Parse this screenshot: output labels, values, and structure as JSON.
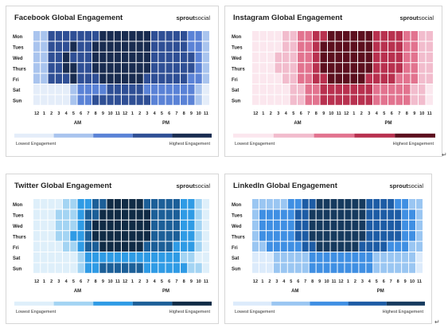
{
  "chart_data": [
    {
      "type": "heatmap",
      "title": "Facebook Global Engagement",
      "brand": "sproutsocial",
      "rows": [
        "Mon",
        "Tues",
        "Wed",
        "Thurs",
        "Fri",
        "Sat",
        "Sun"
      ],
      "columns": [
        "12",
        "1",
        "2",
        "3",
        "4",
        "5",
        "6",
        "7",
        "8",
        "9",
        "10",
        "11",
        "12",
        "1",
        "2",
        "3",
        "4",
        "5",
        "6",
        "7",
        "8",
        "9",
        "10",
        "11"
      ],
      "x_groups": [
        "AM",
        "PM"
      ],
      "legend": [
        "Lowest Engagement",
        "Highest Engagement"
      ],
      "colors": [
        "#e4edf9",
        "#a9c4ee",
        "#5a82d6",
        "#2f4f95",
        "#192c50"
      ],
      "values": [
        [
          1,
          1,
          3,
          3,
          3,
          3,
          3,
          3,
          3,
          4,
          4,
          4,
          4,
          4,
          4,
          4,
          3,
          3,
          3,
          3,
          3,
          2,
          2,
          1
        ],
        [
          1,
          1,
          3,
          3,
          3,
          4,
          3,
          3,
          4,
          4,
          4,
          4,
          4,
          4,
          4,
          4,
          3,
          3,
          3,
          3,
          3,
          2,
          2,
          1
        ],
        [
          1,
          1,
          3,
          3,
          4,
          3,
          3,
          3,
          4,
          4,
          4,
          4,
          4,
          4,
          4,
          4,
          3,
          3,
          3,
          3,
          3,
          3,
          2,
          1
        ],
        [
          1,
          1,
          3,
          3,
          4,
          4,
          3,
          3,
          4,
          4,
          4,
          4,
          4,
          4,
          4,
          4,
          3,
          3,
          3,
          3,
          3,
          3,
          2,
          1
        ],
        [
          1,
          1,
          3,
          3,
          3,
          4,
          3,
          3,
          3,
          4,
          4,
          4,
          4,
          4,
          4,
          3,
          3,
          3,
          3,
          3,
          3,
          2,
          2,
          1
        ],
        [
          0,
          0,
          0,
          0,
          0,
          1,
          2,
          2,
          2,
          2,
          3,
          3,
          3,
          3,
          3,
          2,
          2,
          2,
          2,
          2,
          2,
          2,
          1,
          0
        ],
        [
          0,
          0,
          0,
          0,
          0,
          1,
          2,
          2,
          3,
          3,
          3,
          3,
          3,
          3,
          3,
          3,
          2,
          2,
          2,
          2,
          2,
          2,
          1,
          0
        ]
      ]
    },
    {
      "type": "heatmap",
      "title": "Instagram Global Engagement",
      "brand": "sproutsocial",
      "rows": [
        "Mon",
        "Tues",
        "Wed",
        "Thurs",
        "Fri",
        "Sat",
        "Sun"
      ],
      "columns": [
        "12",
        "1",
        "2",
        "3",
        "4",
        "5",
        "6",
        "7",
        "8",
        "9",
        "10",
        "11",
        "12",
        "1",
        "2",
        "3",
        "4",
        "5",
        "6",
        "7",
        "8",
        "9",
        "10",
        "11"
      ],
      "x_groups": [
        "AM",
        "PM"
      ],
      "legend": [
        "Lowest Engagement",
        "Highest Engagement"
      ],
      "colors": [
        "#fbe7ee",
        "#f2bccd",
        "#e2738f",
        "#b8314f",
        "#5c0f1e"
      ],
      "values": [
        [
          0,
          0,
          0,
          0,
          1,
          1,
          2,
          2,
          3,
          3,
          4,
          4,
          4,
          4,
          4,
          4,
          3,
          3,
          3,
          3,
          2,
          2,
          1,
          1
        ],
        [
          0,
          0,
          0,
          0,
          1,
          1,
          2,
          2,
          3,
          4,
          4,
          4,
          4,
          4,
          4,
          4,
          3,
          3,
          3,
          3,
          2,
          2,
          1,
          1
        ],
        [
          0,
          0,
          0,
          1,
          1,
          1,
          2,
          2,
          3,
          4,
          4,
          4,
          4,
          4,
          4,
          4,
          3,
          3,
          3,
          3,
          2,
          2,
          1,
          1
        ],
        [
          0,
          0,
          0,
          1,
          1,
          1,
          2,
          2,
          3,
          4,
          4,
          4,
          4,
          4,
          4,
          4,
          3,
          3,
          3,
          3,
          2,
          2,
          1,
          1
        ],
        [
          0,
          0,
          0,
          0,
          1,
          1,
          2,
          2,
          3,
          3,
          4,
          4,
          4,
          4,
          4,
          3,
          3,
          3,
          3,
          2,
          2,
          2,
          1,
          1
        ],
        [
          0,
          0,
          0,
          0,
          0,
          1,
          1,
          2,
          2,
          3,
          3,
          3,
          3,
          3,
          3,
          3,
          2,
          2,
          2,
          2,
          2,
          1,
          1,
          0
        ],
        [
          0,
          0,
          0,
          0,
          0,
          1,
          1,
          2,
          2,
          3,
          3,
          3,
          3,
          3,
          3,
          3,
          2,
          2,
          2,
          2,
          2,
          1,
          1,
          0
        ]
      ]
    },
    {
      "type": "heatmap",
      "title": "Twitter Global Engagement",
      "brand": "sproutsocial",
      "rows": [
        "Mon",
        "Tues",
        "Wed",
        "Thurs",
        "Fri",
        "Sat",
        "Sun"
      ],
      "columns": [
        "12",
        "1",
        "2",
        "3",
        "4",
        "5",
        "6",
        "7",
        "8",
        "9",
        "10",
        "11",
        "12",
        "1",
        "2",
        "3",
        "4",
        "5",
        "6",
        "7",
        "8",
        "9",
        "10",
        "11"
      ],
      "x_groups": [
        "AM",
        "PM"
      ],
      "legend": [
        "Lowest Engagement",
        "Highest Engagement"
      ],
      "colors": [
        "#deeffa",
        "#a3d4f3",
        "#2f9be5",
        "#1c5f98",
        "#102b45"
      ],
      "values": [
        [
          0,
          0,
          0,
          0,
          1,
          1,
          2,
          2,
          3,
          3,
          4,
          4,
          4,
          4,
          4,
          3,
          3,
          3,
          3,
          3,
          2,
          2,
          1,
          0
        ],
        [
          0,
          0,
          0,
          1,
          1,
          1,
          2,
          3,
          3,
          4,
          4,
          4,
          4,
          4,
          4,
          4,
          3,
          3,
          3,
          3,
          2,
          2,
          1,
          0
        ],
        [
          0,
          0,
          0,
          1,
          1,
          1,
          2,
          3,
          4,
          4,
          4,
          4,
          4,
          4,
          4,
          4,
          3,
          3,
          3,
          3,
          2,
          2,
          1,
          0
        ],
        [
          0,
          0,
          0,
          1,
          1,
          2,
          2,
          3,
          4,
          4,
          4,
          4,
          4,
          4,
          4,
          4,
          3,
          3,
          3,
          3,
          2,
          2,
          1,
          0
        ],
        [
          0,
          0,
          0,
          0,
          1,
          1,
          2,
          3,
          3,
          4,
          4,
          4,
          4,
          4,
          4,
          3,
          3,
          3,
          3,
          2,
          2,
          2,
          1,
          0
        ],
        [
          0,
          0,
          0,
          0,
          0,
          0,
          1,
          2,
          2,
          2,
          2,
          2,
          2,
          2,
          2,
          2,
          2,
          2,
          2,
          2,
          1,
          1,
          0,
          0
        ],
        [
          0,
          0,
          0,
          0,
          0,
          0,
          1,
          2,
          2,
          3,
          3,
          3,
          3,
          3,
          3,
          2,
          2,
          2,
          2,
          2,
          2,
          1,
          1,
          0
        ]
      ]
    },
    {
      "type": "heatmap",
      "title": "LinkedIn Global Engagement",
      "brand": "sproutsocial",
      "rows": [
        "Mon",
        "Tues",
        "Wed",
        "Thurs",
        "Fri",
        "Sat",
        "Sun"
      ],
      "columns": [
        "12",
        "1",
        "2",
        "3",
        "4",
        "5",
        "6",
        "7",
        "8",
        "9",
        "10",
        "11",
        "12",
        "1",
        "2",
        "3",
        "4",
        "5",
        "6",
        "7",
        "8",
        "9",
        "10",
        "11"
      ],
      "x_groups": [
        "AM",
        "PM"
      ],
      "legend": [
        "Lowest Engagement",
        "Highest Engagement"
      ],
      "colors": [
        "#dcebfb",
        "#9ac6f2",
        "#3f8fe3",
        "#1d5ca5",
        "#163a5e"
      ],
      "values": [
        [
          1,
          1,
          1,
          1,
          1,
          2,
          2,
          3,
          3,
          4,
          4,
          4,
          4,
          4,
          4,
          4,
          3,
          3,
          3,
          3,
          2,
          2,
          1,
          1
        ],
        [
          1,
          2,
          2,
          2,
          2,
          2,
          3,
          3,
          4,
          4,
          4,
          4,
          4,
          4,
          4,
          4,
          3,
          3,
          3,
          3,
          3,
          2,
          2,
          1
        ],
        [
          1,
          2,
          2,
          2,
          2,
          2,
          3,
          3,
          4,
          4,
          4,
          4,
          4,
          4,
          4,
          4,
          3,
          3,
          3,
          3,
          3,
          2,
          2,
          1
        ],
        [
          1,
          2,
          2,
          2,
          2,
          2,
          3,
          3,
          4,
          4,
          4,
          4,
          4,
          4,
          4,
          4,
          3,
          3,
          3,
          3,
          3,
          2,
          2,
          1
        ],
        [
          1,
          1,
          2,
          2,
          2,
          2,
          2,
          3,
          3,
          4,
          4,
          4,
          4,
          4,
          4,
          3,
          3,
          3,
          3,
          2,
          2,
          2,
          1,
          1
        ],
        [
          0,
          0,
          0,
          1,
          1,
          1,
          1,
          1,
          2,
          2,
          2,
          2,
          2,
          2,
          2,
          2,
          2,
          1,
          1,
          1,
          1,
          1,
          1,
          0
        ],
        [
          0,
          0,
          0,
          1,
          1,
          1,
          1,
          1,
          2,
          2,
          2,
          2,
          2,
          2,
          2,
          2,
          2,
          1,
          1,
          1,
          1,
          1,
          1,
          0
        ]
      ]
    }
  ]
}
